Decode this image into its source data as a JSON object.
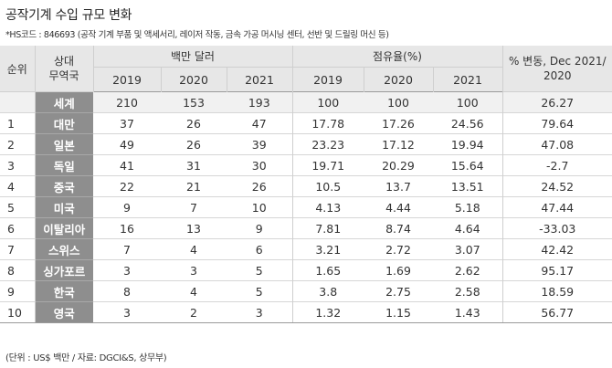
{
  "title": "공작기계 수입 규모 변화",
  "note": "*HS코드 : 846693 (공작 기계 부품 및 액세서리, 레이저 작동, 금속 가공 머시닝 센터, 선반 및 드릴링 머신 등)",
  "headers": {
    "rank": "순위",
    "partner": "상대\n무역국",
    "group_million": "백만 달러",
    "group_share": "점유율(%)",
    "change": "% 변동, Dec 2021/\n2020",
    "years": [
      "2019",
      "2020",
      "2021"
    ]
  },
  "rows": [
    {
      "rank": "",
      "country": "세계",
      "m2019": "210",
      "m2020": "153",
      "m2021": "193",
      "s2019": "100",
      "s2020": "100",
      "s2021": "100",
      "change": "26.27"
    },
    {
      "rank": "1",
      "country": "대만",
      "m2019": "37",
      "m2020": "26",
      "m2021": "47",
      "s2019": "17.78",
      "s2020": "17.26",
      "s2021": "24.56",
      "change": "79.64"
    },
    {
      "rank": "2",
      "country": "일본",
      "m2019": "49",
      "m2020": "26",
      "m2021": "39",
      "s2019": "23.23",
      "s2020": "17.12",
      "s2021": "19.94",
      "change": "47.08"
    },
    {
      "rank": "3",
      "country": "독일",
      "m2019": "41",
      "m2020": "31",
      "m2021": "30",
      "s2019": "19.71",
      "s2020": "20.29",
      "s2021": "15.64",
      "change": "-2.7"
    },
    {
      "rank": "4",
      "country": "중국",
      "m2019": "22",
      "m2020": "21",
      "m2021": "26",
      "s2019": "10.5",
      "s2020": "13.7",
      "s2021": "13.51",
      "change": "24.52"
    },
    {
      "rank": "5",
      "country": "미국",
      "m2019": "9",
      "m2020": "7",
      "m2021": "10",
      "s2019": "4.13",
      "s2020": "4.44",
      "s2021": "5.18",
      "change": "47.44"
    },
    {
      "rank": "6",
      "country": "이탈리아",
      "m2019": "16",
      "m2020": "13",
      "m2021": "9",
      "s2019": "7.81",
      "s2020": "8.74",
      "s2021": "4.64",
      "change": "-33.03"
    },
    {
      "rank": "7",
      "country": "스위스",
      "m2019": "7",
      "m2020": "4",
      "m2021": "6",
      "s2019": "3.21",
      "s2020": "2.72",
      "s2021": "3.07",
      "change": "42.42"
    },
    {
      "rank": "8",
      "country": "싱가포르",
      "m2019": "3",
      "m2020": "3",
      "m2021": "5",
      "s2019": "1.65",
      "s2020": "1.69",
      "s2021": "2.62",
      "change": "95.17"
    },
    {
      "rank": "9",
      "country": "한국",
      "m2019": "8",
      "m2020": "4",
      "m2021": "5",
      "s2019": "3.8",
      "s2020": "2.75",
      "s2021": "2.58",
      "change": "18.59"
    },
    {
      "rank": "10",
      "country": "영국",
      "m2019": "3",
      "m2020": "2",
      "m2021": "3",
      "s2019": "1.32",
      "s2020": "1.15",
      "s2021": "1.43",
      "change": "56.77"
    }
  ],
  "source": "(단위 : US$ 백만 / 자료: DGCI&S, 상무부)"
}
